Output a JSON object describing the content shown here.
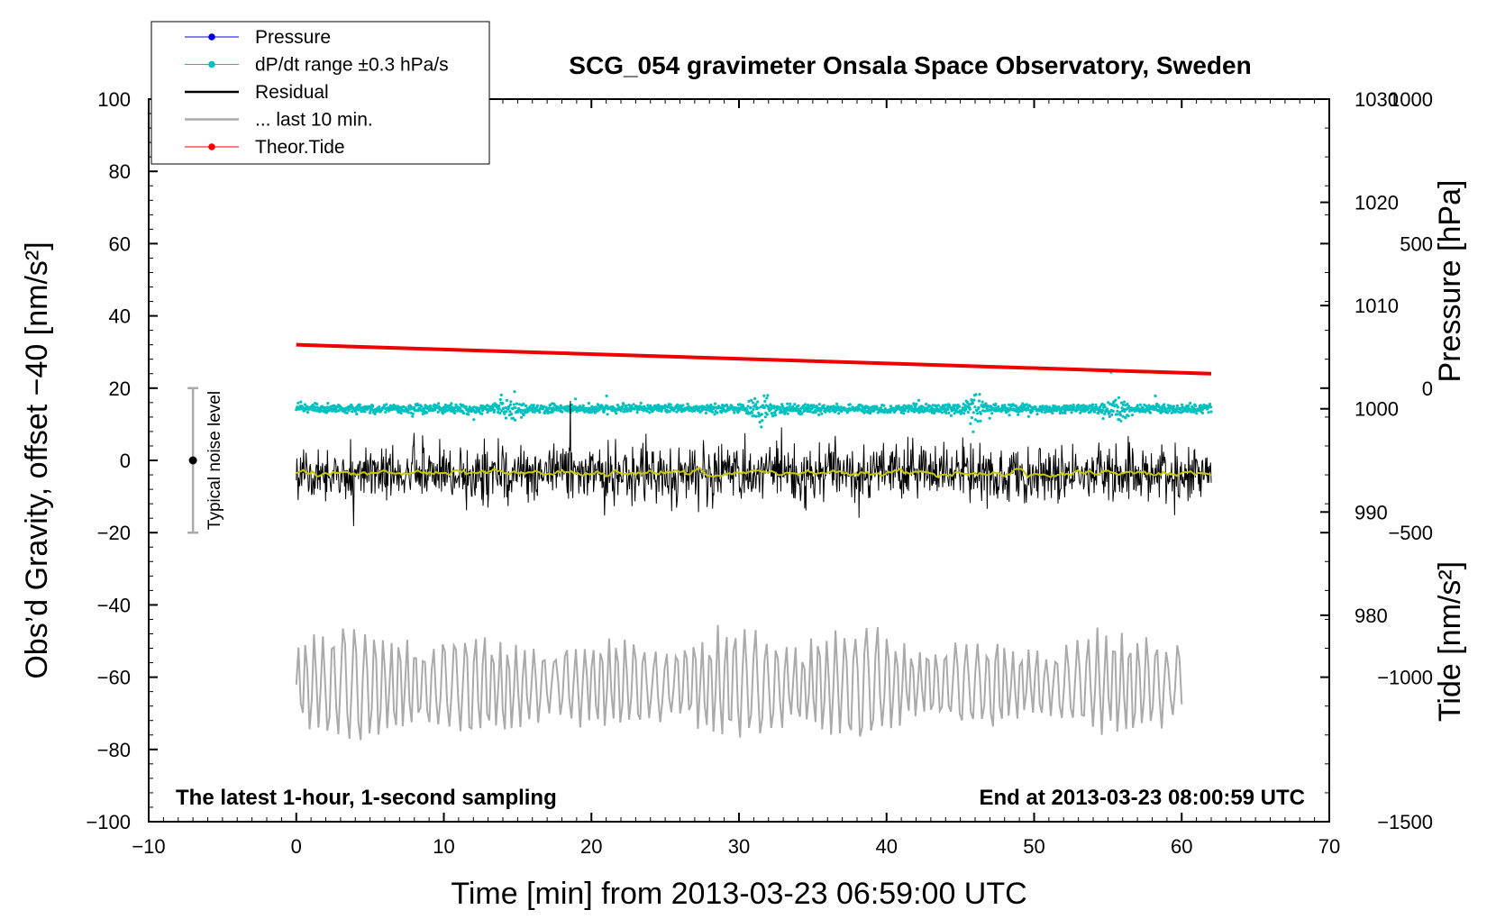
{
  "chart_data": {
    "type": "line",
    "title": "SCG_054 gravimeter Onsala Space Observatory, Sweden",
    "xlabel": "Time [min] from 2013-03-23 06:59:00 UTC",
    "ylabel_left": "Obs’d Gravity, offset −40 [nm/s²]",
    "ylabel_right_top": "Pressure [hPa]",
    "ylabel_right_bottom": "Tide [nm/s²]",
    "xlim": [
      -10,
      70
    ],
    "ylim": [
      -100,
      100
    ],
    "pressure_lim": [
      960,
      1030
    ],
    "tide_lim": [
      -1500,
      1000
    ],
    "x_ticks": [
      "−10",
      "0",
      "10",
      "20",
      "30",
      "40",
      "50",
      "60",
      "70"
    ],
    "y_ticks": [
      "−100",
      "−80",
      "−60",
      "−40",
      "−20",
      "0",
      "20",
      "40",
      "60",
      "80",
      "100"
    ],
    "pressure_ticks": [
      "980",
      "990",
      "1000",
      "1010",
      "1020",
      "1030"
    ],
    "tide_ticks": [
      "−1500",
      "−1000",
      "−500",
      "0",
      "500",
      "1000"
    ],
    "note_left": "The latest 1-hour, 1-second sampling",
    "note_right": "End at 2013-03-23 08:00:59 UTC",
    "noise_label": "Typical noise level",
    "noise_bar": {
      "x": -7,
      "center": 0,
      "low": -20,
      "high": 20
    },
    "legend": [
      {
        "label": "Pressure",
        "color": "#0000dd",
        "marker": true
      },
      {
        "label": "dP/dt range ±0.3 hPa/s",
        "color": "#00c0c0",
        "marker": true
      },
      {
        "label": "Residual",
        "color": "#000000",
        "marker": false
      },
      {
        "label": "... last 10 min.",
        "color": "#aaaaaa",
        "marker": false
      },
      {
        "label": "Theor.Tide",
        "color": "#ee0000",
        "marker": true
      }
    ],
    "series": [
      {
        "name": "dP/dt",
        "color": "#00c0c0",
        "x_range": [
          0,
          62
        ],
        "center": 1000,
        "spread_hpa": 1.2,
        "burst_times": [
          14.5,
          31.5,
          46.0,
          55.5
        ]
      },
      {
        "name": "Residual",
        "color": "#000000",
        "x_range": [
          0,
          62
        ],
        "center": -3.5,
        "typical_range": [
          -15,
          12
        ],
        "extremes": [
          20,
          -26
        ]
      },
      {
        "name": "Residual smoothed",
        "color": "#c8c800",
        "x_range": [
          0,
          62
        ],
        "center": -3.5
      },
      {
        "name": "... last 10 min.",
        "color": "#aaaaaa",
        "x_range": [
          0,
          60
        ],
        "center": -62,
        "range": [
          -85,
          -41
        ]
      },
      {
        "name": "Theor.Tide",
        "color": "#ee0000",
        "x": [
          0,
          62
        ],
        "values": [
          150,
          50
        ]
      }
    ]
  }
}
